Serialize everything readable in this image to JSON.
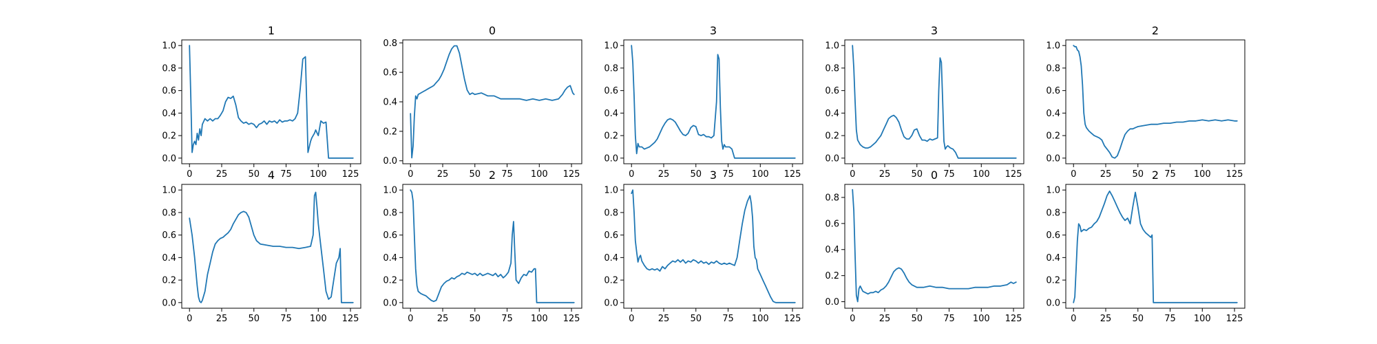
{
  "figure": {
    "background": "#ffffff",
    "line_color": "#1f77b4"
  },
  "chart_data": [
    {
      "type": "line",
      "title": "1",
      "xlim": [
        -6,
        133
      ],
      "ylim": [
        -0.05,
        1.05
      ],
      "xticks": [
        0,
        25,
        50,
        75,
        100,
        125
      ],
      "yticks": [
        0.0,
        0.2,
        0.4,
        0.6,
        0.8,
        1.0
      ],
      "x": [
        0,
        1,
        2,
        3,
        4,
        5,
        6,
        7,
        8,
        9,
        10,
        12,
        14,
        16,
        18,
        20,
        22,
        24,
        26,
        28,
        30,
        32,
        34,
        36,
        38,
        40,
        42,
        44,
        46,
        48,
        50,
        52,
        54,
        56,
        58,
        60,
        62,
        64,
        66,
        68,
        70,
        72,
        74,
        76,
        78,
        80,
        82,
        84,
        86,
        88,
        90,
        91,
        92,
        93,
        94,
        95,
        96,
        97,
        98,
        100,
        102,
        104,
        106,
        108,
        110,
        127
      ],
      "y": [
        1.0,
        0.55,
        0.05,
        0.12,
        0.15,
        0.12,
        0.22,
        0.16,
        0.26,
        0.2,
        0.3,
        0.35,
        0.33,
        0.35,
        0.33,
        0.35,
        0.35,
        0.38,
        0.42,
        0.5,
        0.54,
        0.53,
        0.55,
        0.47,
        0.36,
        0.33,
        0.31,
        0.32,
        0.3,
        0.31,
        0.3,
        0.27,
        0.3,
        0.31,
        0.33,
        0.3,
        0.33,
        0.32,
        0.33,
        0.31,
        0.34,
        0.32,
        0.33,
        0.33,
        0.34,
        0.33,
        0.35,
        0.4,
        0.62,
        0.88,
        0.9,
        0.5,
        0.05,
        0.1,
        0.15,
        0.18,
        0.2,
        0.22,
        0.25,
        0.2,
        0.33,
        0.31,
        0.32,
        0.0,
        0.0,
        0.0
      ]
    },
    {
      "type": "line",
      "title": "0",
      "xlim": [
        -6,
        133
      ],
      "ylim": [
        -0.02,
        0.82
      ],
      "xticks": [
        0,
        25,
        50,
        75,
        100,
        125
      ],
      "yticks": [
        0.0,
        0.2,
        0.4,
        0.6,
        0.8
      ],
      "x": [
        0,
        1,
        2,
        3,
        4,
        5,
        6,
        8,
        10,
        12,
        14,
        16,
        18,
        20,
        22,
        24,
        26,
        28,
        30,
        32,
        34,
        36,
        38,
        40,
        42,
        44,
        46,
        48,
        50,
        55,
        60,
        65,
        70,
        75,
        80,
        85,
        90,
        95,
        100,
        105,
        110,
        115,
        118,
        120,
        122,
        124,
        126,
        127
      ],
      "y": [
        0.32,
        0.02,
        0.1,
        0.3,
        0.44,
        0.42,
        0.45,
        0.46,
        0.47,
        0.48,
        0.49,
        0.5,
        0.51,
        0.53,
        0.55,
        0.58,
        0.62,
        0.67,
        0.72,
        0.76,
        0.78,
        0.78,
        0.73,
        0.64,
        0.55,
        0.48,
        0.45,
        0.46,
        0.45,
        0.46,
        0.44,
        0.44,
        0.42,
        0.42,
        0.42,
        0.42,
        0.41,
        0.42,
        0.41,
        0.42,
        0.41,
        0.42,
        0.45,
        0.48,
        0.5,
        0.51,
        0.46,
        0.45
      ]
    },
    {
      "type": "line",
      "title": "3",
      "xlim": [
        -6,
        133
      ],
      "ylim": [
        -0.05,
        1.05
      ],
      "xticks": [
        0,
        25,
        50,
        75,
        100,
        125
      ],
      "yticks": [
        0.0,
        0.2,
        0.4,
        0.6,
        0.8,
        1.0
      ],
      "x": [
        0,
        1,
        2,
        3,
        4,
        5,
        6,
        8,
        10,
        12,
        14,
        16,
        18,
        20,
        22,
        24,
        26,
        28,
        30,
        32,
        34,
        36,
        38,
        40,
        42,
        44,
        46,
        48,
        50,
        52,
        54,
        56,
        58,
        60,
        62,
        64,
        66,
        67,
        68,
        69,
        70,
        71,
        72,
        73,
        74,
        76,
        78,
        80,
        82,
        127
      ],
      "y": [
        1.0,
        0.85,
        0.55,
        0.2,
        0.04,
        0.13,
        0.1,
        0.1,
        0.08,
        0.09,
        0.1,
        0.12,
        0.14,
        0.17,
        0.22,
        0.27,
        0.31,
        0.34,
        0.35,
        0.34,
        0.32,
        0.28,
        0.24,
        0.21,
        0.2,
        0.22,
        0.27,
        0.29,
        0.28,
        0.21,
        0.2,
        0.21,
        0.19,
        0.19,
        0.18,
        0.2,
        0.5,
        0.92,
        0.88,
        0.45,
        0.15,
        0.08,
        0.12,
        0.1,
        0.1,
        0.1,
        0.08,
        0.0,
        0.0,
        0.0
      ]
    },
    {
      "type": "line",
      "title": "3",
      "xlim": [
        -6,
        133
      ],
      "ylim": [
        -0.05,
        1.05
      ],
      "xticks": [
        0,
        25,
        50,
        75,
        100,
        125
      ],
      "yticks": [
        0.0,
        0.2,
        0.4,
        0.6,
        0.8,
        1.0
      ],
      "x": [
        0,
        1,
        2,
        3,
        4,
        5,
        6,
        8,
        10,
        12,
        14,
        16,
        18,
        20,
        22,
        24,
        26,
        28,
        30,
        32,
        34,
        36,
        38,
        40,
        42,
        44,
        46,
        48,
        50,
        52,
        54,
        56,
        58,
        60,
        62,
        64,
        66,
        67,
        68,
        69,
        70,
        71,
        72,
        73,
        74,
        76,
        78,
        80,
        82,
        85,
        127
      ],
      "y": [
        1.0,
        0.8,
        0.5,
        0.25,
        0.16,
        0.14,
        0.12,
        0.1,
        0.09,
        0.09,
        0.1,
        0.12,
        0.14,
        0.17,
        0.2,
        0.25,
        0.3,
        0.35,
        0.37,
        0.38,
        0.36,
        0.32,
        0.25,
        0.19,
        0.17,
        0.17,
        0.2,
        0.25,
        0.26,
        0.2,
        0.16,
        0.16,
        0.15,
        0.17,
        0.16,
        0.17,
        0.18,
        0.6,
        0.89,
        0.85,
        0.5,
        0.15,
        0.08,
        0.1,
        0.11,
        0.09,
        0.08,
        0.05,
        0.0,
        0.0,
        0.0
      ]
    },
    {
      "type": "line",
      "title": "2",
      "xlim": [
        -6,
        133
      ],
      "ylim": [
        -0.05,
        1.05
      ],
      "xticks": [
        0,
        25,
        50,
        75,
        100,
        125
      ],
      "yticks": [
        0.0,
        0.2,
        0.4,
        0.6,
        0.8,
        1.0
      ],
      "x": [
        0,
        1,
        2,
        3,
        4,
        5,
        6,
        7,
        8,
        9,
        10,
        12,
        14,
        16,
        18,
        20,
        22,
        24,
        26,
        28,
        30,
        32,
        34,
        36,
        38,
        40,
        42,
        44,
        46,
        48,
        50,
        55,
        60,
        65,
        70,
        75,
        80,
        85,
        90,
        95,
        100,
        105,
        110,
        115,
        120,
        125,
        127
      ],
      "y": [
        1.0,
        0.99,
        0.99,
        0.96,
        0.95,
        0.9,
        0.82,
        0.65,
        0.4,
        0.3,
        0.27,
        0.24,
        0.22,
        0.2,
        0.19,
        0.18,
        0.16,
        0.11,
        0.08,
        0.05,
        0.01,
        0.0,
        0.02,
        0.08,
        0.15,
        0.21,
        0.24,
        0.26,
        0.26,
        0.27,
        0.28,
        0.29,
        0.3,
        0.3,
        0.31,
        0.31,
        0.32,
        0.32,
        0.33,
        0.33,
        0.34,
        0.33,
        0.34,
        0.33,
        0.34,
        0.33,
        0.33
      ]
    },
    {
      "type": "line",
      "title": "4",
      "xlim": [
        -6,
        133
      ],
      "ylim": [
        -0.05,
        1.05
      ],
      "xticks": [
        0,
        25,
        50,
        75,
        100,
        125
      ],
      "yticks": [
        0.0,
        0.2,
        0.4,
        0.6,
        0.8,
        1.0
      ],
      "x": [
        0,
        2,
        4,
        6,
        7,
        8,
        9,
        10,
        12,
        14,
        16,
        18,
        20,
        22,
        24,
        26,
        28,
        30,
        32,
        34,
        36,
        38,
        40,
        42,
        44,
        46,
        48,
        50,
        52,
        55,
        60,
        65,
        70,
        75,
        80,
        85,
        90,
        94,
        96,
        97,
        98,
        99,
        100,
        102,
        104,
        106,
        108,
        110,
        112,
        114,
        116,
        117,
        118,
        127
      ],
      "y": [
        0.75,
        0.6,
        0.4,
        0.15,
        0.05,
        0.01,
        0.0,
        0.02,
        0.1,
        0.25,
        0.35,
        0.45,
        0.52,
        0.55,
        0.57,
        0.58,
        0.6,
        0.62,
        0.65,
        0.7,
        0.74,
        0.78,
        0.8,
        0.81,
        0.8,
        0.76,
        0.68,
        0.6,
        0.55,
        0.52,
        0.51,
        0.5,
        0.5,
        0.49,
        0.49,
        0.48,
        0.49,
        0.5,
        0.6,
        0.95,
        0.98,
        0.85,
        0.7,
        0.5,
        0.3,
        0.1,
        0.03,
        0.05,
        0.2,
        0.35,
        0.4,
        0.48,
        0.0,
        0.0
      ]
    },
    {
      "type": "line",
      "title": "2",
      "xlim": [
        -6,
        133
      ],
      "ylim": [
        -0.05,
        1.05
      ],
      "xticks": [
        0,
        25,
        50,
        75,
        100,
        125
      ],
      "yticks": [
        0.0,
        0.2,
        0.4,
        0.6,
        0.8,
        1.0
      ],
      "x": [
        0,
        1,
        2,
        3,
        4,
        5,
        6,
        8,
        10,
        12,
        14,
        16,
        18,
        20,
        22,
        24,
        26,
        28,
        30,
        32,
        34,
        36,
        38,
        40,
        42,
        44,
        46,
        48,
        50,
        52,
        54,
        56,
        58,
        60,
        62,
        64,
        66,
        68,
        70,
        72,
        74,
        76,
        78,
        79,
        80,
        81,
        82,
        84,
        86,
        88,
        90,
        92,
        94,
        96,
        97,
        98,
        127
      ],
      "y": [
        1.0,
        0.98,
        0.9,
        0.6,
        0.3,
        0.15,
        0.1,
        0.08,
        0.07,
        0.06,
        0.04,
        0.02,
        0.01,
        0.02,
        0.08,
        0.14,
        0.17,
        0.19,
        0.2,
        0.22,
        0.21,
        0.23,
        0.24,
        0.26,
        0.25,
        0.27,
        0.26,
        0.25,
        0.26,
        0.24,
        0.26,
        0.24,
        0.25,
        0.26,
        0.25,
        0.24,
        0.26,
        0.23,
        0.25,
        0.22,
        0.24,
        0.27,
        0.35,
        0.6,
        0.72,
        0.45,
        0.2,
        0.17,
        0.22,
        0.25,
        0.24,
        0.28,
        0.27,
        0.3,
        0.3,
        0.0,
        0.0
      ]
    },
    {
      "type": "line",
      "title": "3",
      "xlim": [
        -6,
        133
      ],
      "ylim": [
        -0.05,
        1.05
      ],
      "xticks": [
        0,
        25,
        50,
        75,
        100,
        125
      ],
      "yticks": [
        0.0,
        0.2,
        0.4,
        0.6,
        0.8,
        1.0
      ],
      "x": [
        0,
        1,
        2,
        3,
        4,
        5,
        6,
        7,
        8,
        10,
        12,
        14,
        16,
        18,
        20,
        22,
        24,
        26,
        28,
        30,
        32,
        34,
        36,
        38,
        40,
        42,
        44,
        46,
        48,
        50,
        52,
        54,
        56,
        58,
        60,
        62,
        64,
        66,
        68,
        70,
        72,
        74,
        76,
        78,
        80,
        82,
        84,
        86,
        88,
        90,
        92,
        93,
        94,
        95,
        96,
        97,
        98,
        100,
        102,
        104,
        106,
        108,
        110,
        112,
        115,
        127
      ],
      "y": [
        0.97,
        1.0,
        0.8,
        0.55,
        0.45,
        0.36,
        0.4,
        0.42,
        0.37,
        0.33,
        0.3,
        0.29,
        0.3,
        0.29,
        0.3,
        0.28,
        0.32,
        0.3,
        0.33,
        0.35,
        0.37,
        0.36,
        0.38,
        0.36,
        0.38,
        0.35,
        0.37,
        0.36,
        0.38,
        0.37,
        0.35,
        0.37,
        0.35,
        0.36,
        0.34,
        0.36,
        0.35,
        0.37,
        0.35,
        0.34,
        0.35,
        0.34,
        0.35,
        0.34,
        0.33,
        0.4,
        0.55,
        0.7,
        0.82,
        0.9,
        0.95,
        0.88,
        0.75,
        0.5,
        0.4,
        0.38,
        0.3,
        0.25,
        0.2,
        0.15,
        0.1,
        0.05,
        0.01,
        0.0,
        0.0,
        0.0
      ]
    },
    {
      "type": "line",
      "title": "0",
      "xlim": [
        -6,
        133
      ],
      "ylim": [
        -0.05,
        0.9
      ],
      "xticks": [
        0,
        25,
        50,
        75,
        100,
        125
      ],
      "yticks": [
        0.0,
        0.2,
        0.4,
        0.6,
        0.8
      ],
      "x": [
        0,
        1,
        2,
        3,
        4,
        5,
        6,
        8,
        10,
        12,
        14,
        16,
        18,
        20,
        22,
        24,
        26,
        28,
        30,
        32,
        34,
        36,
        38,
        40,
        42,
        44,
        46,
        48,
        50,
        55,
        60,
        65,
        70,
        75,
        80,
        85,
        90,
        95,
        100,
        105,
        110,
        115,
        120,
        123,
        125,
        127
      ],
      "y": [
        0.86,
        0.7,
        0.35,
        0.05,
        0.0,
        0.1,
        0.12,
        0.08,
        0.07,
        0.06,
        0.07,
        0.07,
        0.08,
        0.07,
        0.09,
        0.1,
        0.12,
        0.15,
        0.19,
        0.23,
        0.25,
        0.26,
        0.25,
        0.22,
        0.18,
        0.15,
        0.13,
        0.12,
        0.11,
        0.11,
        0.12,
        0.11,
        0.11,
        0.1,
        0.1,
        0.1,
        0.1,
        0.11,
        0.11,
        0.11,
        0.12,
        0.12,
        0.13,
        0.15,
        0.14,
        0.15
      ]
    },
    {
      "type": "line",
      "title": "2",
      "xlim": [
        -6,
        133
      ],
      "ylim": [
        -0.05,
        1.05
      ],
      "xticks": [
        0,
        25,
        50,
        75,
        100,
        125
      ],
      "yticks": [
        0.0,
        0.2,
        0.4,
        0.6,
        0.8,
        1.0
      ],
      "x": [
        0,
        1,
        2,
        3,
        4,
        5,
        6,
        8,
        10,
        12,
        14,
        16,
        18,
        20,
        22,
        24,
        26,
        28,
        30,
        32,
        34,
        36,
        38,
        40,
        42,
        44,
        46,
        48,
        50,
        52,
        54,
        56,
        58,
        60,
        61,
        62,
        127
      ],
      "y": [
        0.0,
        0.05,
        0.3,
        0.55,
        0.7,
        0.68,
        0.63,
        0.65,
        0.64,
        0.66,
        0.67,
        0.7,
        0.72,
        0.76,
        0.82,
        0.88,
        0.95,
        0.99,
        0.95,
        0.9,
        0.85,
        0.8,
        0.76,
        0.73,
        0.75,
        0.7,
        0.85,
        0.98,
        0.85,
        0.7,
        0.65,
        0.62,
        0.6,
        0.58,
        0.6,
        0.0,
        0.0
      ]
    }
  ]
}
